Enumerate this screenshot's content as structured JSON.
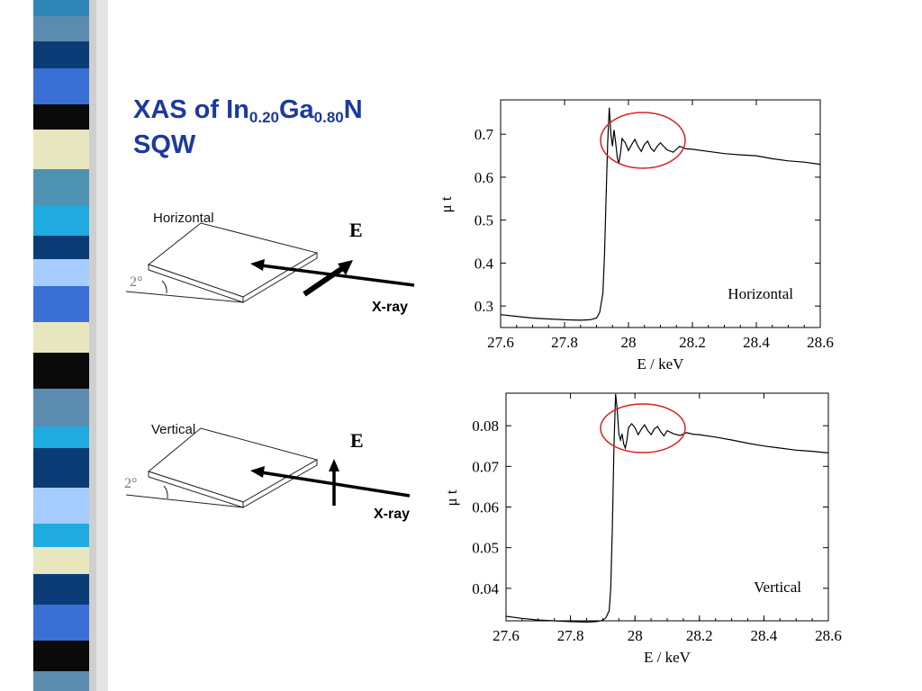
{
  "title": {
    "line1_prefix": "XAS of In",
    "in_sub": "0.20",
    "ga": "Ga",
    "ga_sub": "0.80",
    "n": "N",
    "line2": "SQW"
  },
  "diagrams": [
    {
      "label": "Horizontal",
      "angle": "2°",
      "field_label": "E",
      "beam_label": "X-ray",
      "polarization": "horizontal"
    },
    {
      "label": "Vertical",
      "angle": "2°",
      "field_label": "E",
      "beam_label": "X-ray",
      "polarization": "vertical"
    }
  ],
  "colors": {
    "title": "#1c3a9e",
    "highlight_ellipse": "#d62020"
  },
  "chart_data": [
    {
      "type": "line",
      "title": "",
      "annotation": "Horizontal",
      "xlabel": "E / keV",
      "ylabel": "μ t",
      "xlim": [
        27.6,
        28.6
      ],
      "ylim": [
        0.25,
        0.78
      ],
      "xticks": [
        "27.6",
        "27.8",
        "28",
        "28.2",
        "28.4",
        "28.6"
      ],
      "yticks": [
        "0.3",
        "0.4",
        "0.5",
        "0.6",
        "0.7"
      ],
      "series": [
        {
          "x": [
            27.6,
            27.65,
            27.7,
            27.75,
            27.8,
            27.85,
            27.88,
            27.9,
            27.91,
            27.92,
            27.925,
            27.93,
            27.935,
            27.94,
            27.945,
            27.95,
            27.955,
            27.96,
            27.965,
            27.97,
            27.975,
            27.98,
            27.99,
            28.0,
            28.01,
            28.02,
            28.03,
            28.04,
            28.05,
            28.06,
            28.07,
            28.08,
            28.09,
            28.1,
            28.12,
            28.14,
            28.16,
            28.18,
            28.2,
            28.25,
            28.3,
            28.35,
            28.4,
            28.45,
            28.5,
            28.55,
            28.6
          ],
          "y": [
            0.28,
            0.276,
            0.272,
            0.27,
            0.268,
            0.267,
            0.268,
            0.272,
            0.285,
            0.33,
            0.42,
            0.55,
            0.68,
            0.762,
            0.7,
            0.672,
            0.71,
            0.68,
            0.645,
            0.632,
            0.655,
            0.69,
            0.68,
            0.662,
            0.676,
            0.688,
            0.672,
            0.66,
            0.676,
            0.684,
            0.668,
            0.66,
            0.672,
            0.68,
            0.664,
            0.658,
            0.672,
            0.666,
            0.665,
            0.66,
            0.655,
            0.652,
            0.65,
            0.643,
            0.638,
            0.635,
            0.63
          ]
        }
      ]
    },
    {
      "type": "line",
      "title": "",
      "annotation": "Vertical",
      "xlabel": "E / keV",
      "ylabel": "μ t",
      "xlim": [
        27.6,
        28.6
      ],
      "ylim": [
        0.032,
        0.088
      ],
      "xticks": [
        "27.6",
        "27.8",
        "28",
        "28.2",
        "28.4",
        "28.6"
      ],
      "yticks": [
        "0.04",
        "0.05",
        "0.06",
        "0.07",
        "0.08"
      ],
      "series": [
        {
          "x": [
            27.6,
            27.65,
            27.7,
            27.75,
            27.8,
            27.85,
            27.88,
            27.9,
            27.91,
            27.92,
            27.925,
            27.93,
            27.935,
            27.94,
            27.945,
            27.95,
            27.955,
            27.96,
            27.965,
            27.97,
            27.975,
            27.98,
            27.99,
            28.0,
            28.01,
            28.02,
            28.03,
            28.04,
            28.05,
            28.06,
            28.07,
            28.08,
            28.09,
            28.1,
            28.12,
            28.14,
            28.16,
            28.18,
            28.2,
            28.25,
            28.3,
            28.35,
            28.4,
            28.45,
            28.5,
            28.55,
            28.6
          ],
          "y": [
            0.0331,
            0.0326,
            0.0322,
            0.032,
            0.0318,
            0.0317,
            0.0318,
            0.0321,
            0.0328,
            0.0345,
            0.04,
            0.055,
            0.075,
            0.0878,
            0.084,
            0.078,
            0.0765,
            0.078,
            0.0755,
            0.0745,
            0.0765,
            0.0795,
            0.0805,
            0.0795,
            0.0778,
            0.0792,
            0.0802,
            0.0788,
            0.0778,
            0.0792,
            0.0798,
            0.0785,
            0.0775,
            0.0788,
            0.078,
            0.0776,
            0.0783,
            0.0779,
            0.0778,
            0.0772,
            0.0765,
            0.0757,
            0.075,
            0.0745,
            0.074,
            0.0737,
            0.0733
          ]
        }
      ]
    }
  ]
}
